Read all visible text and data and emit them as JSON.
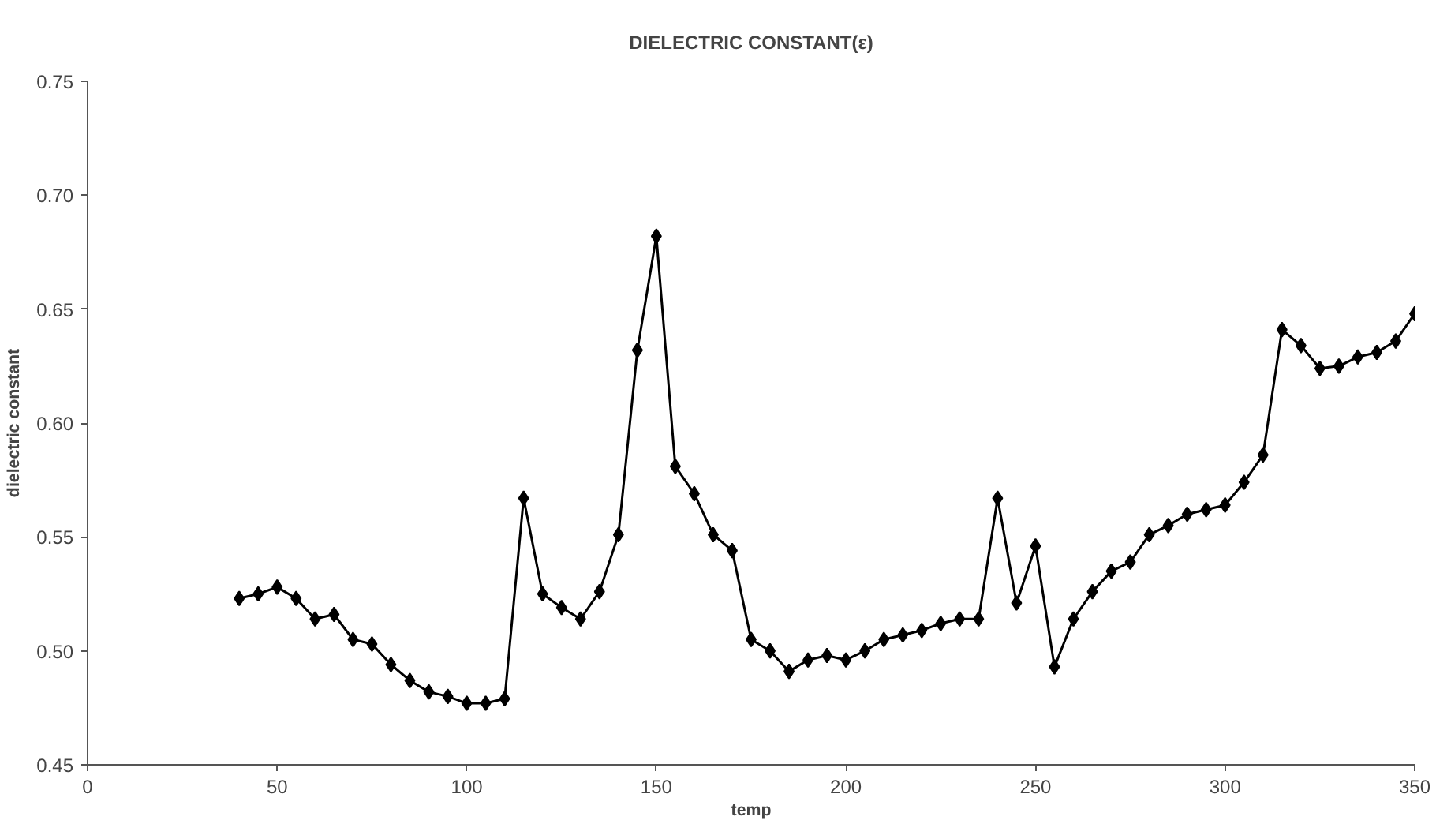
{
  "chart_data": {
    "type": "line",
    "title": "DIELECTRIC CONSTANT(ε)",
    "xlabel": "temp",
    "ylabel": "dielectric constant",
    "x": [
      40,
      45,
      50,
      55,
      60,
      65,
      70,
      75,
      80,
      85,
      90,
      95,
      100,
      105,
      110,
      115,
      120,
      125,
      130,
      135,
      140,
      145,
      150,
      155,
      160,
      165,
      170,
      175,
      180,
      185,
      190,
      195,
      200,
      205,
      210,
      215,
      220,
      225,
      230,
      235,
      240,
      245,
      250,
      255,
      260,
      265,
      270,
      275,
      280,
      285,
      290,
      295,
      300,
      305,
      310,
      315,
      320,
      325,
      330,
      335,
      340,
      345,
      350
    ],
    "series": [
      {
        "color": "#000000",
        "values": [
          0.523,
          0.525,
          0.528,
          0.523,
          0.514,
          0.516,
          0.505,
          0.503,
          0.494,
          0.487,
          0.482,
          0.48,
          0.477,
          0.477,
          0.479,
          0.567,
          0.525,
          0.519,
          0.514,
          0.526,
          0.551,
          0.632,
          0.682,
          0.581,
          0.569,
          0.551,
          0.544,
          0.505,
          0.5,
          0.491,
          0.496,
          0.498,
          0.496,
          0.5,
          0.505,
          0.507,
          0.509,
          0.512,
          0.514,
          0.514,
          0.567,
          0.521,
          0.546,
          0.493,
          0.514,
          0.526,
          0.535,
          0.539,
          0.551,
          0.555,
          0.56,
          0.562,
          0.564,
          0.574,
          0.586,
          0.641,
          0.634,
          0.624,
          0.625,
          0.629,
          0.631,
          0.636,
          0.648
        ]
      }
    ],
    "xlim": [
      0,
      350
    ],
    "xticks": [
      0,
      50,
      100,
      150,
      200,
      250,
      300,
      350
    ],
    "ylim": [
      0.45,
      0.75
    ],
    "yticks": [
      {
        "value": 0.45,
        "label": "0.45"
      },
      {
        "value": 0.5,
        "label": "0.50"
      },
      {
        "value": 0.55,
        "label": "0.55"
      },
      {
        "value": 0.6,
        "label": "0.60"
      },
      {
        "value": 0.65,
        "label": "0.65"
      },
      {
        "value": 0.7,
        "label": "0.70"
      },
      {
        "value": 0.75,
        "label": "0.75"
      }
    ],
    "grid": false,
    "marker": "diamond",
    "line_style": "solid"
  }
}
